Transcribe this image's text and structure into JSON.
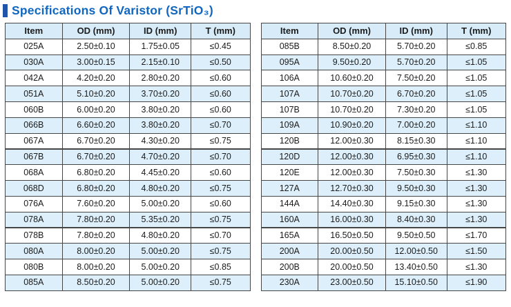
{
  "page": {
    "title": "Specifications Of Varistor (SrTiO₃)"
  },
  "colors": {
    "accent": "#1e55a8",
    "title-color": "#1166bf",
    "header-bg": "#d7ecf8",
    "stripe-bg": "#ddeffa",
    "border-color": "#454545",
    "text-color": "#1b1b1b"
  },
  "columns": [
    "Item",
    "OD (mm)",
    "ID (mm)",
    "T (mm)"
  ],
  "tables": [
    {
      "name": "left",
      "rows": [
        [
          "025A",
          "2.50±0.10",
          "1.75±0.05",
          "≤0.45"
        ],
        [
          "030A",
          "3.00±0.15",
          "2.15±0.10",
          "≤0.50"
        ],
        [
          "042A",
          "4.20±0.20",
          "2.80±0.20",
          "≤0.60"
        ],
        [
          "051A",
          "5.10±0.20",
          "3.70±0.20",
          "≤0.60"
        ],
        [
          "060B",
          "6.00±0.20",
          "3.80±0.20",
          "≤0.60"
        ],
        [
          "066B",
          "6.60±0.20",
          "3.80±0.20",
          "≤0.70"
        ],
        [
          "067A",
          "6.70±0.20",
          "4.30±0.20",
          "≤0.75"
        ],
        [
          "067B",
          "6.70±0.20",
          "4.70±0.20",
          "≤0.70"
        ],
        [
          "068A",
          "6.80±0.20",
          "4.45±0.20",
          "≤0.60"
        ],
        [
          "068D",
          "6.80±0.20",
          "4.80±0.20",
          "≤0.75"
        ],
        [
          "076A",
          "7.60±0.20",
          "5.00±0.20",
          "≤0.60"
        ],
        [
          "078A",
          "7.80±0.20",
          "5.35±0.20",
          "≤0.75"
        ],
        [
          "078B",
          "7.80±0.20",
          "4.80±0.20",
          "≤0.70"
        ],
        [
          "080A",
          "8.00±0.20",
          "5.00±0.20",
          "≤0.75"
        ],
        [
          "080B",
          "8.00±0.20",
          "5.00±0.20",
          "≤0.85"
        ],
        [
          "085A",
          "8.50±0.20",
          "5.00±0.20",
          "≤0.75"
        ]
      ]
    },
    {
      "name": "right",
      "rows": [
        [
          "085B",
          "8.50±0.20",
          "5.70±0.20",
          "≤0.85"
        ],
        [
          "095A",
          "9.50±0.20",
          "5.70±0.20",
          "≤1.05"
        ],
        [
          "106A",
          "10.60±0.20",
          "7.50±0.20",
          "≤1.05"
        ],
        [
          "107A",
          "10.70±0.20",
          "6.70±0.20",
          "≤1.05"
        ],
        [
          "107B",
          "10.70±0.20",
          "7.30±0.20",
          "≤1.05"
        ],
        [
          "109A",
          "10.90±0.20",
          "7.00±0.20",
          "≤1.10"
        ],
        [
          "120B",
          "12.00±0.30",
          "8.15±0.30",
          "≤1.10"
        ],
        [
          "120D",
          "12.00±0.30",
          "6.95±0.30",
          "≤1.10"
        ],
        [
          "120E",
          "12.00±0.30",
          "7.50±0.30",
          "≤1.30"
        ],
        [
          "127A",
          "12.70±0.30",
          "9.50±0.30",
          "≤1.30"
        ],
        [
          "144A",
          "14.40±0.30",
          "9.15±0.30",
          "≤1.30"
        ],
        [
          "160A",
          "16.00±0.30",
          "8.40±0.30",
          "≤1.30"
        ],
        [
          "165A",
          "16.50±0.50",
          "9.50±0.50",
          "≤1.70"
        ],
        [
          "200A",
          "20.00±0.50",
          "12.00±0.50",
          "≤1.50"
        ],
        [
          "200B",
          "20.00±0.50",
          "13.40±0.50",
          "≤1.30"
        ],
        [
          "230A",
          "23.00±0.50",
          "15.10±0.50",
          "≤1.90"
        ]
      ]
    }
  ]
}
